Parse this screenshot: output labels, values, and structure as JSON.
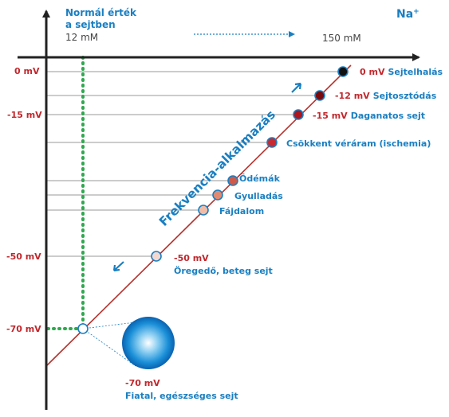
{
  "colors": {
    "red": "#c0282d",
    "blue": "#1a7fc1",
    "green": "#2fa84f",
    "axis": "#222222",
    "gray": "#555555",
    "line": "#b5332e"
  },
  "header": {
    "normal_value_line1": "Normál érték",
    "normal_value_line2": "a sejtben",
    "normal_conc": "12 mM",
    "high_conc": "150 mM",
    "ion": "Na+"
  },
  "y_axis": {
    "ticks": [
      "0 mV",
      "-15 mV",
      "-50 mV",
      "-70 mV"
    ]
  },
  "diagonal_label": "Frekvencia-alkalmazás",
  "points": [
    {
      "label": "0 mV",
      "name": "Sejtelhalás",
      "fill": "#111111"
    },
    {
      "label": "-12 mV",
      "name": "Sejtosztódás",
      "fill": "#7a0a0e"
    },
    {
      "label": "-15 mV",
      "name": "Daganatos sejt",
      "fill": "#b0141c"
    },
    {
      "label": "",
      "name": "Csökkent véráram (ischemia)",
      "fill": "#c72a30"
    },
    {
      "label": "",
      "name": "Ödémák",
      "fill": "#cf5a4a"
    },
    {
      "label": "",
      "name": "Gyulladás",
      "fill": "#e08a72"
    },
    {
      "label": "",
      "name": "Fájdalom",
      "fill": "#f0bca8"
    },
    {
      "label": "-50 mV",
      "name": "Öregedő, beteg sejt",
      "fill": "#f4d8d0"
    },
    {
      "label": "-70 mV",
      "name": "Fiatal, egészséges sejt",
      "fill": "#ffffff"
    }
  ]
}
